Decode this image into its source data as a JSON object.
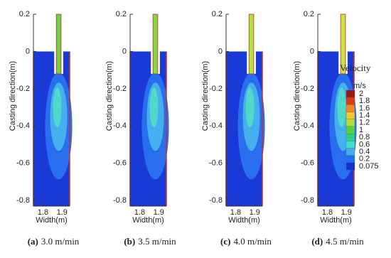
{
  "chart_data": [
    {
      "type": "contour",
      "caption_label": "(a)",
      "caption": "3.0 m/min",
      "ylabel": "Casting direction(m)",
      "xlabel": "Width(m)",
      "xlim": [
        1.75,
        1.94
      ],
      "xticks": [
        1.8,
        1.9
      ],
      "ylim": [
        -0.83,
        0.2
      ],
      "yticks": [
        0.2,
        0,
        -0.2,
        -0.4,
        -0.6,
        -0.8
      ],
      "nozzle_color": "#72d044"
    },
    {
      "type": "contour",
      "caption_label": "(b)",
      "caption": "3.5 m/min",
      "ylabel": "Casting direction(m)",
      "xlabel": "Width(m)",
      "xlim": [
        1.75,
        1.94
      ],
      "xticks": [
        1.8,
        1.9
      ],
      "ylim": [
        -0.83,
        0.2
      ],
      "yticks": [
        0.2,
        0,
        -0.2,
        -0.4,
        -0.6,
        -0.8
      ],
      "nozzle_color": "#86d844"
    },
    {
      "type": "contour",
      "caption_label": "(c)",
      "caption": "4.0 m/min",
      "ylabel": "Casting direction(m)",
      "xlabel": "Width(m)",
      "xlim": [
        1.75,
        1.94
      ],
      "xticks": [
        1.8,
        1.9
      ],
      "ylim": [
        -0.83,
        0.2
      ],
      "yticks": [
        0.2,
        0,
        -0.2,
        -0.4,
        -0.6,
        -0.8
      ],
      "nozzle_color": "#b4e040"
    },
    {
      "type": "contour",
      "caption_label": "(d)",
      "caption": "4.5 m/min",
      "ylabel": "Casting direction(m)",
      "xlabel": "Width(m)",
      "xlim": [
        1.75,
        1.94
      ],
      "xticks": [
        1.8,
        1.9
      ],
      "ylim": [
        -0.83,
        0.2
      ],
      "yticks": [
        0.2,
        0,
        -0.2,
        -0.4,
        -0.6,
        -0.8
      ],
      "nozzle_color": "#c8e440",
      "legend_title": "Velocity",
      "legend_unit": "m/s",
      "levels": [
        2,
        1.8,
        1.6,
        1.4,
        1.2,
        1,
        0.8,
        0.6,
        0.4,
        0.2,
        0.075
      ],
      "level_colors": [
        "#a01818",
        "#e03818",
        "#f08828",
        "#f0c828",
        "#b0e038",
        "#58d040",
        "#30d088",
        "#40e0d0",
        "#40b0f0",
        "#2070f0",
        "#1030d0"
      ]
    }
  ]
}
